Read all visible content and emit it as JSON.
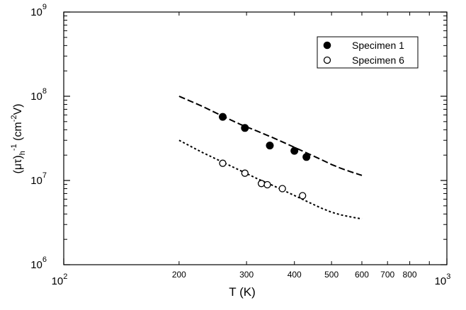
{
  "chart_data": {
    "type": "scatter",
    "x_scale": "log",
    "y_scale": "log",
    "xlim": [
      100,
      1000
    ],
    "ylim": [
      1000000,
      1000000000
    ],
    "x_label_parts": [
      "T (K)"
    ],
    "y_label_parts": [
      "(μτ)",
      "h",
      "-1",
      " (cm",
      "-2",
      "V)"
    ],
    "x_ticks_major": [
      {
        "base": "10",
        "exp": "2",
        "value": 100
      },
      {
        "base": "10",
        "exp": "3",
        "value": 1000
      }
    ],
    "x_ticks_minor_labeled": [
      {
        "label": "200",
        "value": 200
      },
      {
        "label": "300",
        "value": 300
      },
      {
        "label": "400",
        "value": 400
      },
      {
        "label": "500",
        "value": 500
      },
      {
        "label": "600",
        "value": 600
      },
      {
        "label": "700",
        "value": 700
      },
      {
        "label": "800",
        "value": 800
      }
    ],
    "x_ticks_minor_unlabeled": [
      900
    ],
    "y_ticks_major": [
      {
        "base": "10",
        "exp": "6",
        "value": 1000000
      },
      {
        "base": "10",
        "exp": "7",
        "value": 10000000
      },
      {
        "base": "10",
        "exp": "8",
        "value": 100000000
      },
      {
        "base": "10",
        "exp": "9",
        "value": 1000000000
      }
    ],
    "series": [
      {
        "name": "Specimen 1",
        "marker": "filled-circle",
        "x": [
          260,
          297,
          345,
          400,
          430
        ],
        "y": [
          57000000,
          42000000,
          26000000,
          22500000,
          19000000
        ],
        "fit_line": {
          "style": "dashed",
          "x": [
            200,
            230,
            260,
            290,
            320,
            350,
            380,
            410,
            440,
            470,
            500,
            530,
            560,
            600
          ],
          "y": [
            100000000,
            76000000,
            58000000,
            46000000,
            38500000,
            32500000,
            27500000,
            23500000,
            20300000,
            17700000,
            15500000,
            13900000,
            12700000,
            11500000
          ]
        }
      },
      {
        "name": "Specimen 6",
        "marker": "open-circle",
        "x": [
          260,
          297,
          328,
          340,
          372,
          420
        ],
        "y": [
          16000000,
          12200000,
          9200000,
          8900000,
          8000000,
          6600000
        ],
        "fit_line": {
          "style": "dotted",
          "x": [
            200,
            230,
            260,
            290,
            320,
            350,
            380,
            410,
            440,
            470,
            500,
            530,
            560,
            600
          ],
          "y": [
            30000000,
            21500000,
            16500000,
            13000000,
            10500000,
            8800000,
            7400000,
            6300000,
            5400000,
            4700000,
            4200000,
            3900000,
            3700000,
            3500000
          ]
        }
      }
    ],
    "legend_position": "top-right",
    "grid": false,
    "colors": {
      "ink": "#000000",
      "background": "#ffffff"
    }
  }
}
